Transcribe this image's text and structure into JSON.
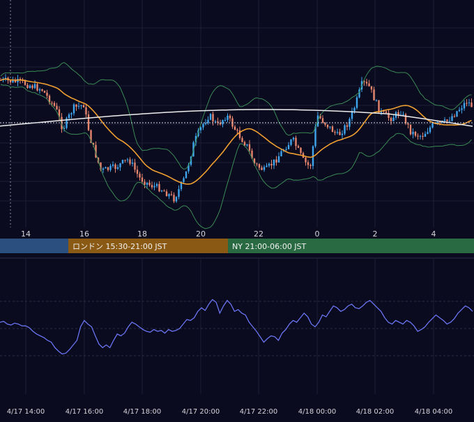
{
  "chart_data": [
    {
      "type": "candlestick",
      "x_ticks": [
        "14",
        "16",
        "18",
        "20",
        "22",
        "0",
        "2",
        "4"
      ],
      "sessions": [
        {
          "name": "",
          "label": "",
          "color": "#2b4f7e"
        },
        {
          "name": "london",
          "label": "ロンドン 15:30-21:00 JST",
          "color": "#8a5a14"
        },
        {
          "name": "ny",
          "label": "NY 21:00-06:00 JST",
          "color": "#2a6a42"
        }
      ],
      "overlays": [
        "bollinger-bands",
        "moving-average-orange",
        "moving-average-white"
      ],
      "dotted_reference_line": true,
      "colors": {
        "bull": "#3fa6ee",
        "bear": "#e8866e",
        "bollinger": "#3a8a56",
        "ma_fast": "#f0a030",
        "ma_slow": "#eeeeee",
        "grid": "#1c2035",
        "text": "#d6d6dc"
      },
      "grid": true
    },
    {
      "type": "line",
      "x_ticks": [
        "4/17 14:00",
        "4/17 16:00",
        "4/17 18:00",
        "4/17 20:00",
        "4/17 22:00",
        "4/18 00:00",
        "4/18 02:00",
        "4/18 04:00"
      ],
      "y": [
        60,
        61,
        58,
        57,
        59,
        58,
        56,
        56,
        54,
        50,
        47,
        45,
        43,
        40,
        38,
        32,
        28,
        25,
        26,
        30,
        35,
        40,
        55,
        62,
        58,
        55,
        45,
        36,
        32,
        35,
        32,
        40,
        47,
        45,
        48,
        55,
        60,
        58,
        55,
        52,
        50,
        49,
        52,
        50,
        51,
        48,
        52,
        50,
        51,
        53,
        58,
        63,
        62,
        65,
        72,
        76,
        73,
        80,
        85,
        82,
        70,
        78,
        84,
        80,
        72,
        74,
        70,
        68,
        60,
        55,
        50,
        44,
        38,
        42,
        45,
        44,
        40,
        48,
        52,
        58,
        62,
        60,
        65,
        70,
        66,
        58,
        55,
        60,
        68,
        66,
        72,
        78,
        76,
        72,
        74,
        78,
        80,
        76,
        75,
        78,
        82,
        84,
        80,
        76,
        72,
        65,
        60,
        58,
        62,
        60,
        58,
        62,
        60,
        56,
        50,
        52,
        55,
        60,
        64,
        68,
        65,
        62,
        58,
        60,
        64,
        70,
        74,
        78,
        76,
        72
      ],
      "ylim": [
        0,
        100
      ],
      "color": "#6a74f2",
      "grid": true
    }
  ]
}
